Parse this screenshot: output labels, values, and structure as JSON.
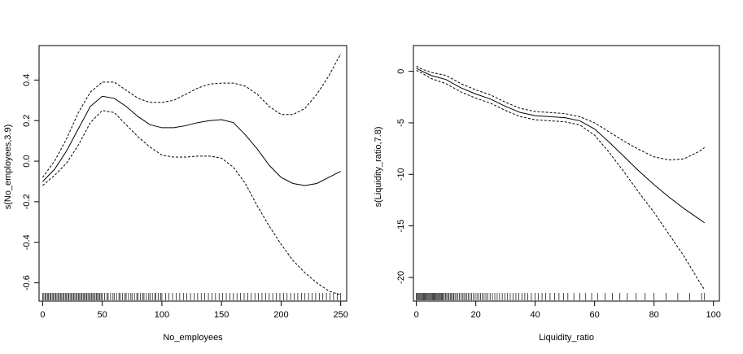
{
  "chart_data": [
    {
      "type": "line",
      "xlabel": "No_employees",
      "ylabel": "s(No_employees,3.9)",
      "xlim": [
        -3,
        255
      ],
      "ylim": [
        -0.69,
        0.57
      ],
      "xticks": [
        0,
        50,
        100,
        150,
        200,
        250
      ],
      "xtick_labels": [
        "0",
        "50",
        "100",
        "150",
        "200",
        "250"
      ],
      "yticks": [
        -0.6,
        -0.4,
        -0.2,
        0.0,
        0.2,
        0.4
      ],
      "ytick_labels": [
        "-0.6",
        "-0.4",
        "-0.2",
        "0.0",
        "0.2",
        "0.4"
      ],
      "grid": false,
      "x": [
        0,
        10,
        20,
        30,
        40,
        50,
        60,
        70,
        80,
        90,
        100,
        110,
        120,
        130,
        140,
        150,
        160,
        170,
        180,
        190,
        200,
        210,
        220,
        230,
        240,
        250
      ],
      "series": [
        {
          "style": "solid",
          "values": [
            -0.1,
            -0.04,
            0.05,
            0.16,
            0.27,
            0.32,
            0.31,
            0.27,
            0.22,
            0.18,
            0.165,
            0.165,
            0.175,
            0.19,
            0.2,
            0.205,
            0.19,
            0.13,
            0.06,
            -0.02,
            -0.08,
            -0.11,
            -0.12,
            -0.11,
            -0.08,
            -0.05
          ]
        },
        {
          "style": "dashed",
          "values": [
            -0.08,
            0.0,
            0.11,
            0.24,
            0.34,
            0.39,
            0.39,
            0.35,
            0.31,
            0.29,
            0.29,
            0.3,
            0.33,
            0.36,
            0.38,
            0.385,
            0.385,
            0.37,
            0.33,
            0.27,
            0.23,
            0.23,
            0.26,
            0.33,
            0.42,
            0.53
          ]
        },
        {
          "style": "dashed",
          "values": [
            -0.12,
            -0.07,
            -0.01,
            0.08,
            0.19,
            0.25,
            0.24,
            0.18,
            0.12,
            0.07,
            0.03,
            0.02,
            0.02,
            0.025,
            0.025,
            0.015,
            -0.03,
            -0.11,
            -0.22,
            -0.32,
            -0.41,
            -0.49,
            -0.55,
            -0.6,
            -0.64,
            -0.66
          ]
        }
      ],
      "rug_x": [
        0,
        1,
        2,
        3,
        4,
        5,
        6,
        7,
        8,
        9,
        10,
        11,
        12,
        13,
        14,
        15,
        16,
        17,
        18,
        19,
        20,
        21,
        22,
        23,
        24,
        25,
        26,
        27,
        28,
        29,
        30,
        31,
        32,
        33,
        34,
        35,
        36,
        37,
        38,
        39,
        40,
        41,
        42,
        43,
        44,
        45,
        46,
        47,
        48,
        49,
        50,
        52,
        54,
        55,
        57,
        59,
        60,
        62,
        64,
        65,
        67,
        69,
        70,
        72,
        74,
        75,
        77,
        79,
        80,
        82,
        84,
        85,
        87,
        89,
        90,
        92,
        94,
        95,
        97,
        99,
        100,
        103,
        106,
        109,
        112,
        115,
        118,
        121,
        124,
        127,
        130,
        133,
        136,
        139,
        142,
        145,
        148,
        151,
        154,
        157,
        160,
        163,
        166,
        169,
        172,
        175,
        178,
        181,
        184,
        187,
        190,
        193,
        196,
        199,
        202,
        205,
        208,
        211,
        214,
        217,
        220,
        223,
        226,
        229,
        232,
        235,
        238,
        241,
        244,
        247,
        250
      ]
    },
    {
      "type": "line",
      "xlabel": "Liquidity_ratio",
      "ylabel": "s(Liquidity_ratio,7.8)",
      "xlim": [
        -1,
        102
      ],
      "ylim": [
        -22.3,
        2.5
      ],
      "xticks": [
        0,
        20,
        40,
        60,
        80,
        100
      ],
      "xtick_labels": [
        "0",
        "20",
        "40",
        "60",
        "80",
        "100"
      ],
      "yticks": [
        -20,
        -15,
        -10,
        -5,
        0
      ],
      "ytick_labels": [
        "-20",
        "-15",
        "-10",
        "-5",
        "0"
      ],
      "grid": false,
      "x": [
        0,
        2,
        5,
        10,
        15,
        20,
        25,
        30,
        35,
        40,
        45,
        50,
        55,
        60,
        65,
        70,
        75,
        80,
        85,
        90,
        95,
        97
      ],
      "series": [
        {
          "style": "solid",
          "values": [
            0.3,
            0.0,
            -0.4,
            -0.8,
            -1.6,
            -2.2,
            -2.7,
            -3.4,
            -4.0,
            -4.3,
            -4.4,
            -4.5,
            -4.8,
            -5.6,
            -6.9,
            -8.3,
            -9.7,
            -11.0,
            -12.2,
            -13.3,
            -14.3,
            -14.7
          ]
        },
        {
          "style": "dashed",
          "values": [
            0.5,
            0.2,
            -0.1,
            -0.4,
            -1.2,
            -1.8,
            -2.3,
            -3.0,
            -3.6,
            -3.9,
            -4.0,
            -4.1,
            -4.4,
            -5.0,
            -5.9,
            -6.8,
            -7.6,
            -8.3,
            -8.6,
            -8.5,
            -7.8,
            -7.4
          ]
        },
        {
          "style": "dashed",
          "values": [
            0.1,
            -0.2,
            -0.7,
            -1.2,
            -2.0,
            -2.6,
            -3.1,
            -3.8,
            -4.4,
            -4.7,
            -4.8,
            -4.9,
            -5.2,
            -6.2,
            -7.9,
            -9.8,
            -11.8,
            -13.7,
            -15.8,
            -17.9,
            -20.3,
            -21.2
          ]
        }
      ],
      "rug_x": [
        0,
        0.3,
        0.6,
        0.9,
        1.2,
        1.5,
        1.8,
        2.1,
        2.4,
        2.7,
        3,
        3.3,
        3.6,
        3.9,
        4.2,
        4.5,
        4.8,
        5.1,
        5.4,
        5.7,
        6,
        6.3,
        6.6,
        6.9,
        7.2,
        7.5,
        7.8,
        8.1,
        8.4,
        8.7,
        9,
        9.4,
        9.8,
        10.2,
        10.6,
        11,
        11.4,
        11.8,
        12.2,
        12.6,
        13,
        13.5,
        14,
        14.5,
        15,
        15.5,
        16,
        16.5,
        17,
        17.5,
        18,
        18.6,
        19.2,
        19.8,
        20.4,
        21,
        21.6,
        22.2,
        22.8,
        23.4,
        24,
        24.8,
        25.6,
        26.4,
        27.2,
        28,
        28.9,
        29.8,
        30.7,
        31.6,
        32.5,
        33.5,
        34.5,
        35.5,
        36.5,
        37.5,
        38.7,
        39.9,
        41.1,
        42.3,
        43.5,
        45,
        46.5,
        48,
        49.5,
        51,
        53,
        55,
        57,
        59,
        61,
        63.5,
        66,
        68.5,
        71,
        74,
        77,
        80,
        84,
        88,
        92,
        96,
        97
      ]
    }
  ]
}
